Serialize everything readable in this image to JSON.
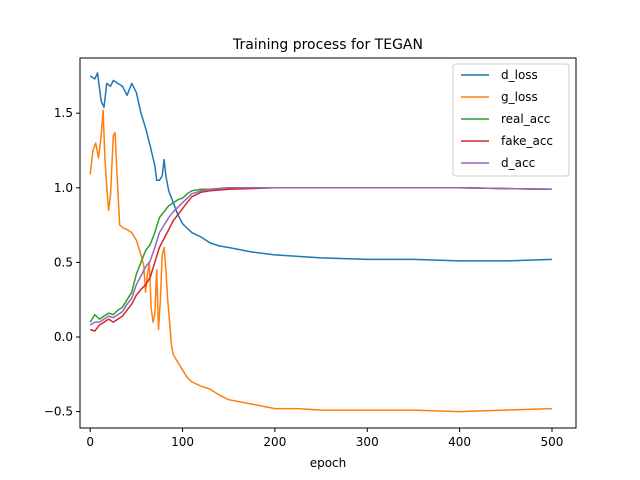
{
  "chart_data": {
    "type": "line",
    "title": "Training process for TEGAN",
    "xlabel": "epoch",
    "ylabel": "",
    "xlim": [
      -11,
      526
    ],
    "ylim": [
      -0.61,
      1.87
    ],
    "xticks": [
      0,
      100,
      200,
      300,
      400,
      500
    ],
    "yticks": [
      -0.5,
      0.0,
      0.5,
      1.0,
      1.5
    ],
    "xtick_labels": [
      "0",
      "100",
      "200",
      "300",
      "400",
      "500"
    ],
    "ytick_labels": [
      "−0.5",
      "0.0",
      "0.5",
      "1.0",
      "1.5"
    ],
    "grid": false,
    "legend_position": "top-right",
    "series": [
      {
        "name": "d_loss",
        "color": "#1f77b4",
        "points": [
          [
            0,
            1.75
          ],
          [
            5,
            1.73
          ],
          [
            8,
            1.77
          ],
          [
            12,
            1.58
          ],
          [
            15,
            1.54
          ],
          [
            18,
            1.7
          ],
          [
            22,
            1.68
          ],
          [
            25,
            1.72
          ],
          [
            30,
            1.7
          ],
          [
            35,
            1.68
          ],
          [
            40,
            1.62
          ],
          [
            45,
            1.7
          ],
          [
            50,
            1.64
          ],
          [
            55,
            1.5
          ],
          [
            60,
            1.4
          ],
          [
            65,
            1.28
          ],
          [
            70,
            1.15
          ],
          [
            72,
            1.05
          ],
          [
            75,
            1.05
          ],
          [
            78,
            1.08
          ],
          [
            80,
            1.19
          ],
          [
            82,
            1.08
          ],
          [
            85,
            0.98
          ],
          [
            90,
            0.9
          ],
          [
            95,
            0.82
          ],
          [
            100,
            0.76
          ],
          [
            105,
            0.73
          ],
          [
            110,
            0.7
          ],
          [
            120,
            0.67
          ],
          [
            130,
            0.63
          ],
          [
            140,
            0.61
          ],
          [
            150,
            0.6
          ],
          [
            175,
            0.57
          ],
          [
            200,
            0.55
          ],
          [
            225,
            0.54
          ],
          [
            250,
            0.53
          ],
          [
            300,
            0.52
          ],
          [
            350,
            0.52
          ],
          [
            400,
            0.51
          ],
          [
            450,
            0.51
          ],
          [
            500,
            0.52
          ]
        ]
      },
      {
        "name": "g_loss",
        "color": "#ff7f0e",
        "points": [
          [
            0,
            1.09
          ],
          [
            3,
            1.25
          ],
          [
            6,
            1.3
          ],
          [
            9,
            1.2
          ],
          [
            12,
            1.35
          ],
          [
            14,
            1.52
          ],
          [
            16,
            1.2
          ],
          [
            18,
            1.0
          ],
          [
            20,
            0.85
          ],
          [
            22,
            0.95
          ],
          [
            25,
            1.35
          ],
          [
            27,
            1.37
          ],
          [
            29,
            1.1
          ],
          [
            32,
            0.75
          ],
          [
            36,
            0.73
          ],
          [
            40,
            0.72
          ],
          [
            45,
            0.7
          ],
          [
            50,
            0.65
          ],
          [
            55,
            0.55
          ],
          [
            58,
            0.48
          ],
          [
            60,
            0.3
          ],
          [
            62,
            0.42
          ],
          [
            64,
            0.5
          ],
          [
            66,
            0.2
          ],
          [
            68,
            0.1
          ],
          [
            70,
            0.15
          ],
          [
            72,
            0.45
          ],
          [
            74,
            0.05
          ],
          [
            76,
            0.25
          ],
          [
            78,
            0.55
          ],
          [
            80,
            0.6
          ],
          [
            82,
            0.45
          ],
          [
            84,
            0.25
          ],
          [
            86,
            0.1
          ],
          [
            88,
            -0.05
          ],
          [
            90,
            -0.12
          ],
          [
            95,
            -0.17
          ],
          [
            100,
            -0.22
          ],
          [
            105,
            -0.27
          ],
          [
            110,
            -0.3
          ],
          [
            120,
            -0.33
          ],
          [
            130,
            -0.35
          ],
          [
            140,
            -0.39
          ],
          [
            150,
            -0.42
          ],
          [
            175,
            -0.45
          ],
          [
            200,
            -0.48
          ],
          [
            225,
            -0.48
          ],
          [
            250,
            -0.49
          ],
          [
            300,
            -0.49
          ],
          [
            350,
            -0.49
          ],
          [
            400,
            -0.5
          ],
          [
            450,
            -0.49
          ],
          [
            500,
            -0.48
          ]
        ]
      },
      {
        "name": "real_acc",
        "color": "#2ca02c",
        "points": [
          [
            0,
            0.1
          ],
          [
            5,
            0.15
          ],
          [
            10,
            0.12
          ],
          [
            15,
            0.14
          ],
          [
            20,
            0.16
          ],
          [
            25,
            0.15
          ],
          [
            30,
            0.18
          ],
          [
            35,
            0.2
          ],
          [
            40,
            0.25
          ],
          [
            45,
            0.3
          ],
          [
            50,
            0.42
          ],
          [
            55,
            0.5
          ],
          [
            60,
            0.58
          ],
          [
            65,
            0.62
          ],
          [
            70,
            0.7
          ],
          [
            75,
            0.8
          ],
          [
            80,
            0.84
          ],
          [
            85,
            0.88
          ],
          [
            90,
            0.9
          ],
          [
            95,
            0.92
          ],
          [
            100,
            0.93
          ],
          [
            105,
            0.96
          ],
          [
            110,
            0.98
          ],
          [
            120,
            0.99
          ],
          [
            130,
            0.99
          ],
          [
            150,
            1.0
          ],
          [
            200,
            1.0
          ],
          [
            300,
            1.0
          ],
          [
            400,
            1.0
          ],
          [
            500,
            0.99
          ]
        ]
      },
      {
        "name": "fake_acc",
        "color": "#d62728",
        "points": [
          [
            0,
            0.05
          ],
          [
            5,
            0.04
          ],
          [
            10,
            0.08
          ],
          [
            15,
            0.1
          ],
          [
            20,
            0.12
          ],
          [
            25,
            0.1
          ],
          [
            30,
            0.12
          ],
          [
            35,
            0.14
          ],
          [
            40,
            0.18
          ],
          [
            45,
            0.22
          ],
          [
            50,
            0.28
          ],
          [
            55,
            0.32
          ],
          [
            60,
            0.35
          ],
          [
            65,
            0.4
          ],
          [
            70,
            0.5
          ],
          [
            75,
            0.6
          ],
          [
            80,
            0.66
          ],
          [
            85,
            0.72
          ],
          [
            90,
            0.78
          ],
          [
            95,
            0.82
          ],
          [
            100,
            0.86
          ],
          [
            105,
            0.9
          ],
          [
            110,
            0.94
          ],
          [
            120,
            0.97
          ],
          [
            130,
            0.98
          ],
          [
            150,
            0.99
          ],
          [
            200,
            1.0
          ],
          [
            300,
            1.0
          ],
          [
            400,
            1.0
          ],
          [
            500,
            0.99
          ]
        ]
      },
      {
        "name": "d_acc",
        "color": "#9467bd",
        "points": [
          [
            0,
            0.08
          ],
          [
            5,
            0.1
          ],
          [
            10,
            0.1
          ],
          [
            15,
            0.12
          ],
          [
            20,
            0.14
          ],
          [
            25,
            0.13
          ],
          [
            30,
            0.15
          ],
          [
            35,
            0.17
          ],
          [
            40,
            0.22
          ],
          [
            45,
            0.26
          ],
          [
            50,
            0.35
          ],
          [
            55,
            0.41
          ],
          [
            60,
            0.47
          ],
          [
            65,
            0.51
          ],
          [
            70,
            0.6
          ],
          [
            75,
            0.7
          ],
          [
            80,
            0.75
          ],
          [
            85,
            0.8
          ],
          [
            90,
            0.84
          ],
          [
            95,
            0.87
          ],
          [
            100,
            0.9
          ],
          [
            105,
            0.93
          ],
          [
            110,
            0.96
          ],
          [
            120,
            0.98
          ],
          [
            130,
            0.99
          ],
          [
            150,
            1.0
          ],
          [
            200,
            1.0
          ],
          [
            300,
            1.0
          ],
          [
            400,
            1.0
          ],
          [
            500,
            0.99
          ]
        ]
      }
    ]
  }
}
